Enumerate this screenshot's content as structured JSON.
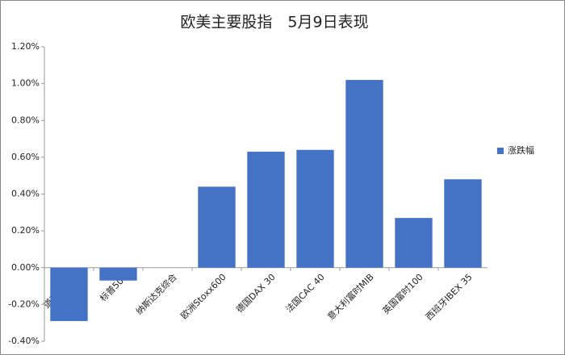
{
  "chart_data": {
    "type": "bar",
    "title": "欧美主要股指　5月9日表现",
    "categories": [
      "道琼斯工业",
      "标普500",
      "纳斯达克综合",
      "欧洲Stoxx600",
      "德国DAX 30",
      "法国CAC 40",
      "意大利富时MIB",
      "英国富时100",
      "西班牙IBEX 35"
    ],
    "series": [
      {
        "name": "涨跌幅",
        "color": "#4472c4",
        "values": [
          -0.29,
          -0.07,
          0,
          0.44,
          0.63,
          0.64,
          1.02,
          0.27,
          0.48
        ]
      }
    ],
    "ylim": [
      -0.4,
      1.2
    ],
    "yticks": [
      {
        "value": -0.4,
        "label": "-0.40%"
      },
      {
        "value": -0.2,
        "label": "-0.20%"
      },
      {
        "value": 0,
        "label": "0.00%"
      },
      {
        "value": 0.2,
        "label": "0.20%"
      },
      {
        "value": 0.4,
        "label": "0.40%"
      },
      {
        "value": 0.6,
        "label": "0.60%"
      },
      {
        "value": 0.8,
        "label": "0.80%"
      },
      {
        "value": 1.0,
        "label": "1.00%"
      },
      {
        "value": 1.2,
        "label": "1.20%"
      }
    ],
    "grid": false,
    "legend": "right"
  }
}
